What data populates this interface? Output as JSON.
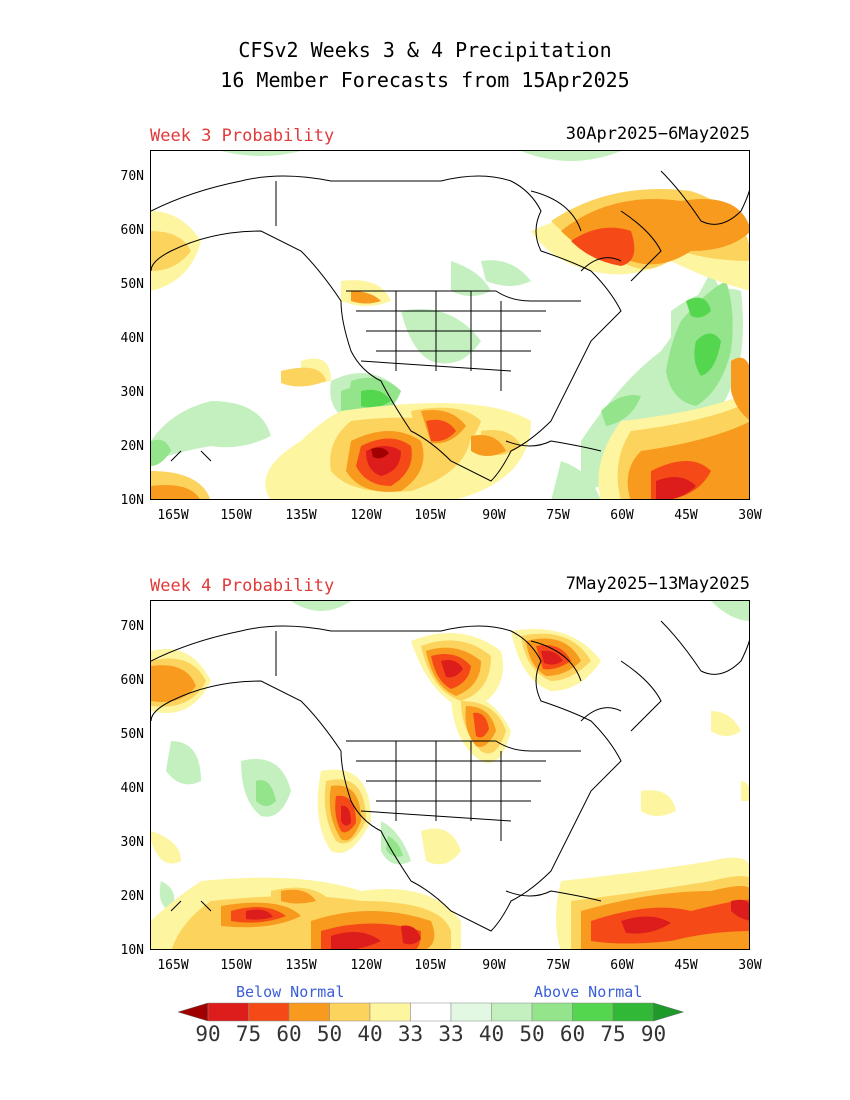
{
  "title": {
    "line1": "CFSv2 Weeks 3 & 4 Precipitation",
    "line2": "16 Member Forecasts from 15Apr2025"
  },
  "panels": [
    {
      "label": "Week 3 Probability",
      "dates": "30Apr2025−6May2025"
    },
    {
      "label": "Week 4 Probability",
      "dates": "7May2025−13May2025"
    }
  ],
  "axes": {
    "lat_labels": [
      "70N",
      "60N",
      "50N",
      "40N",
      "30N",
      "20N",
      "10N"
    ],
    "lon_labels": [
      "165W",
      "150W",
      "135W",
      "120W",
      "105W",
      "90W",
      "75W",
      "60W",
      "45W",
      "30W"
    ]
  },
  "legend": {
    "below_label": "Below Normal",
    "above_label": "Above Normal",
    "numbers": [
      "90",
      "75",
      "60",
      "50",
      "40",
      "33",
      "33",
      "40",
      "50",
      "60",
      "75",
      "90"
    ],
    "colors": [
      "#a00000",
      "#dd1c1c",
      "#f54a18",
      "#f79a1e",
      "#fcd35c",
      "#fdf5a0",
      "#ffffff",
      "#e3f8e3",
      "#c4f0c0",
      "#93e48b",
      "#55d64f",
      "#31b836",
      "#1e9a2a"
    ]
  }
}
